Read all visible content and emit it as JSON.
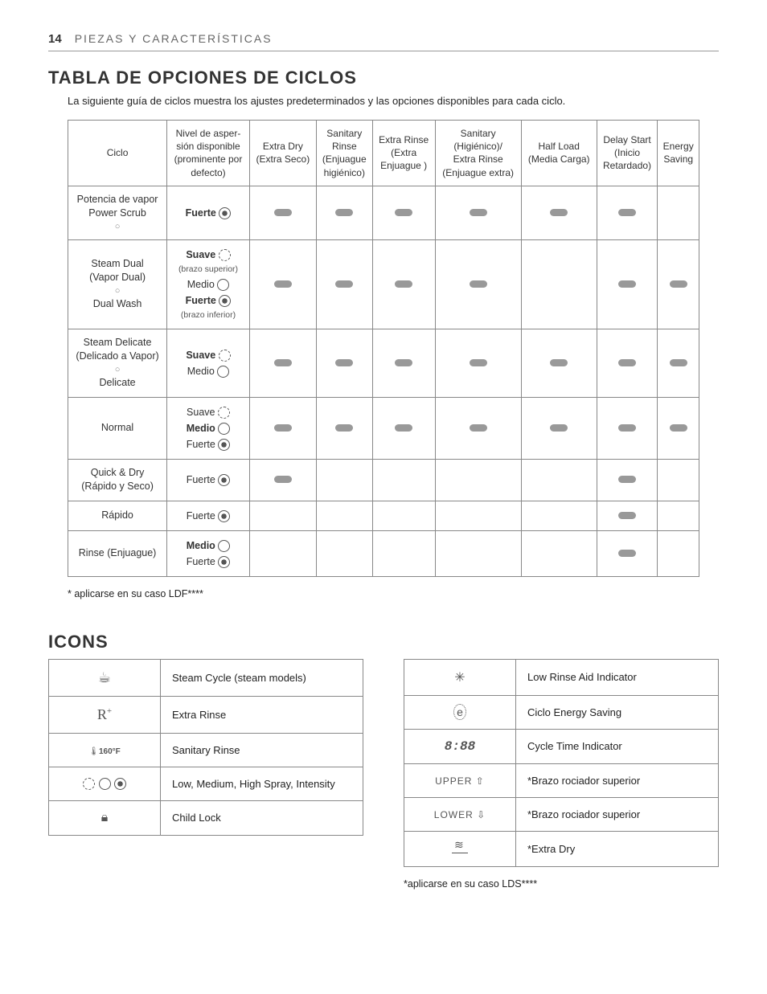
{
  "header": {
    "page_num": "14",
    "section": "PIEZAS Y CARACTERÍSTICAS"
  },
  "section1": {
    "title": "TABLA DE OPCIONES DE CICLOS",
    "intro": "La siguiente guía de ciclos muestra los ajustes predeterminados y las opciones disponibles para cada ciclo.",
    "footnote": "* aplicarse en su caso LDF****"
  },
  "cycle_table": {
    "columns": [
      {
        "l1": "Ciclo"
      },
      {
        "l1": "Nivel de asper-",
        "l2": "sión disponible",
        "l3": "(prominente por",
        "l4": "defecto)"
      },
      {
        "l1": "Extra Dry",
        "l2": "(Extra Seco)"
      },
      {
        "l1": "Sanitary",
        "l2": "Rinse",
        "l3": "(Enjuague",
        "l4": "higiénico)"
      },
      {
        "l1": "Extra Rinse",
        "l2": "(Extra",
        "l3": "Enjuague )"
      },
      {
        "l1": "Sanitary",
        "l2": "(Higiénico)/",
        "l3": "Extra Rinse",
        "l4": "(Enjuague extra)"
      },
      {
        "l1": "Half Load",
        "l2": "(Media Carga)"
      },
      {
        "l1": "Delay Start",
        "l2": "(Inicio",
        "l3": "Retardado)"
      },
      {
        "l1": "Energy",
        "l2": "Saving"
      }
    ],
    "rows": [
      {
        "ciclo": {
          "l1": "Potencia de vapor",
          "sep": true,
          "l2": "Power Scrub"
        },
        "spray": [
          {
            "t": "Fuerte",
            "icon": "high",
            "bold": true
          }
        ],
        "leds": [
          true,
          true,
          true,
          true,
          true,
          true,
          false
        ]
      },
      {
        "ciclo": {
          "l1": "Steam Dual",
          "l2": "(Vapor Dual)",
          "sep": true,
          "l3": "Dual Wash"
        },
        "spray": [
          {
            "t": "Suave",
            "icon": "low",
            "bold": true,
            "sub": "(brazo superior)"
          },
          {
            "t": "Medio",
            "icon": "med"
          },
          {
            "t": "Fuerte",
            "icon": "high",
            "bold": true,
            "sub": "(brazo inferior)"
          }
        ],
        "leds": [
          true,
          true,
          true,
          true,
          false,
          true,
          true
        ]
      },
      {
        "ciclo": {
          "l1": "Steam Delicate",
          "l2": "(Delicado a Vapor)",
          "sep": true,
          "l3": "Delicate"
        },
        "spray": [
          {
            "t": "Suave",
            "icon": "low",
            "bold": true
          },
          {
            "t": "Medio",
            "icon": "med"
          }
        ],
        "leds": [
          true,
          true,
          true,
          true,
          true,
          true,
          true
        ]
      },
      {
        "ciclo": {
          "l1": "Normal"
        },
        "spray": [
          {
            "t": "Suave",
            "icon": "low"
          },
          {
            "t": "Medio",
            "icon": "med",
            "bold": true
          },
          {
            "t": "Fuerte",
            "icon": "high"
          }
        ],
        "leds": [
          true,
          true,
          true,
          true,
          true,
          true,
          true
        ]
      },
      {
        "ciclo": {
          "l1": "Quick & Dry",
          "l2": "(Rápido y Seco)"
        },
        "spray": [
          {
            "t": "Fuerte",
            "icon": "high"
          }
        ],
        "leds": [
          true,
          false,
          false,
          false,
          false,
          true,
          false
        ]
      },
      {
        "ciclo": {
          "l1": "Rápido"
        },
        "spray": [
          {
            "t": "Fuerte",
            "icon": "high"
          }
        ],
        "leds": [
          false,
          false,
          false,
          false,
          false,
          true,
          false
        ]
      },
      {
        "ciclo": {
          "l1": "Rinse (Enjuague)"
        },
        "spray": [
          {
            "t": "Medio",
            "icon": "med",
            "bold": true
          },
          {
            "t": "Fuerte",
            "icon": "high"
          }
        ],
        "leds": [
          false,
          false,
          false,
          false,
          false,
          true,
          false
        ]
      }
    ]
  },
  "section2": {
    "title": "ICONS",
    "footnote": "*aplicarse en su caso LDS****"
  },
  "icons_left": [
    {
      "sym": "steam",
      "label": "Steam Cycle (steam models)"
    },
    {
      "sym": "R+",
      "label": "Extra Rinse"
    },
    {
      "sym": "160",
      "label": "Sanitary Rinse"
    },
    {
      "sym": "spray3",
      "label": "Low, Medium, High Spray, Intensity"
    },
    {
      "sym": "lock",
      "label": "Child Lock"
    }
  ],
  "icons_right": [
    {
      "sym": "snow",
      "label": "Low Rinse Aid Indicator"
    },
    {
      "sym": "eco",
      "label": "Ciclo Energy Saving"
    },
    {
      "sym": "8:88",
      "label": "Cycle Time Indicator"
    },
    {
      "sym": "UPPER ⇧",
      "label": "*Brazo rociador superior"
    },
    {
      "sym": "LOWER ⇩",
      "label": "*Brazo rociador superior"
    },
    {
      "sym": "dry",
      "label": "*Extra Dry"
    }
  ]
}
